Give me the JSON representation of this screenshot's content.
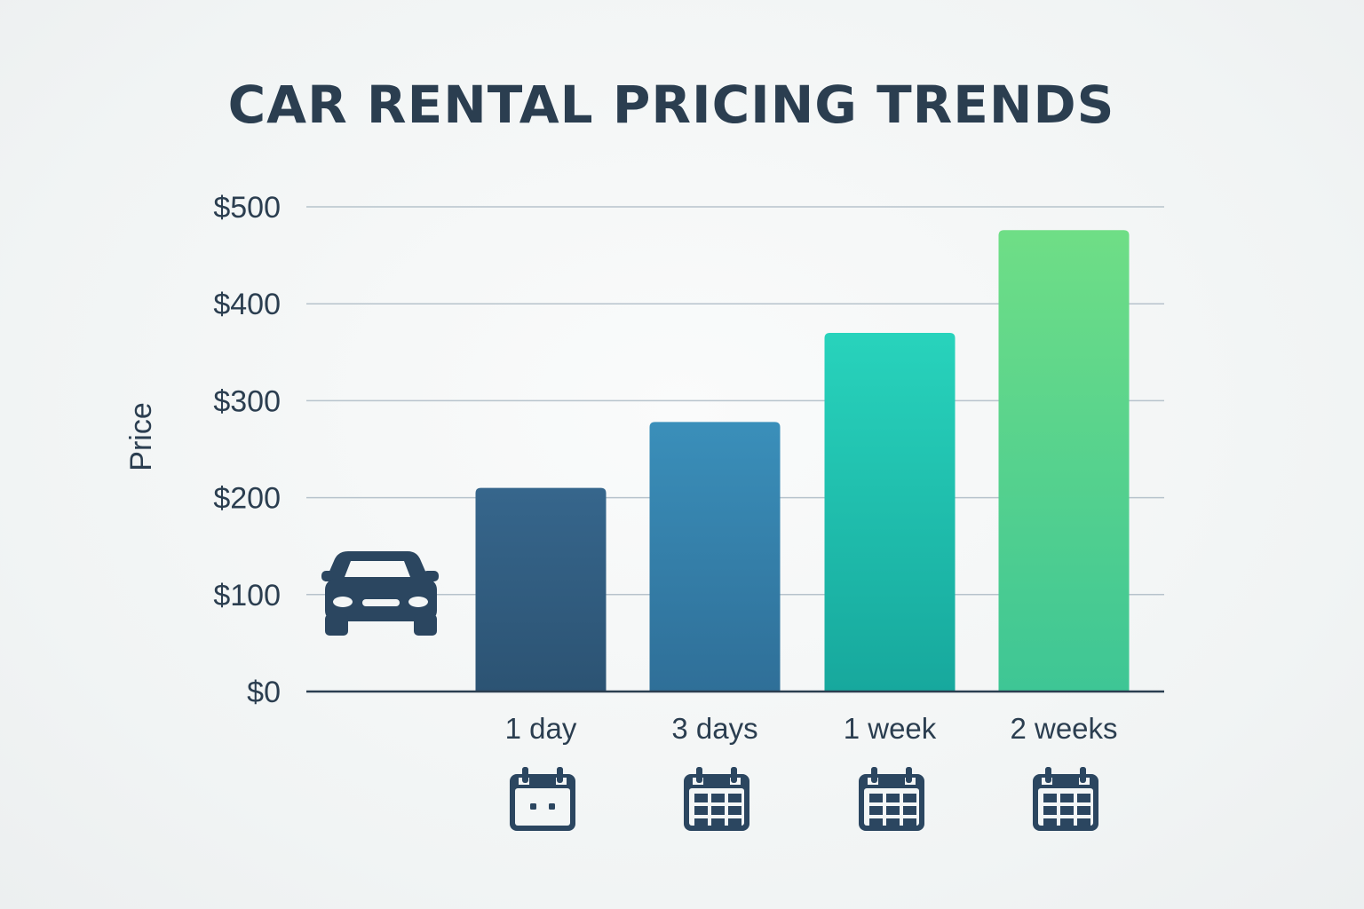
{
  "chart_data": {
    "type": "bar",
    "title": "CAR RENTAL PRICING TRENDS",
    "xlabel": "",
    "ylabel": "Price",
    "categories": [
      "1 day",
      "3 days",
      "1 week",
      "2 weeks"
    ],
    "values": [
      210,
      278,
      370,
      476
    ],
    "ylim": [
      0,
      500
    ],
    "yticks": [
      0,
      100,
      200,
      300,
      400,
      500
    ],
    "ytick_labels": [
      "$0",
      "$100",
      "$200",
      "$300",
      "$400",
      "$500"
    ],
    "grid": true,
    "bar_colors": [
      [
        "#36668c",
        "#2c5373"
      ],
      [
        "#3a8fba",
        "#2f6f98"
      ],
      [
        "#28d3bc",
        "#17a89d"
      ],
      [
        "#6fde86",
        "#3ec695"
      ]
    ],
    "category_icons": [
      "calendar-icon",
      "calendar-grid-icon",
      "calendar-grid-icon",
      "calendar-grid-icon"
    ],
    "decoration_icon": "car-icon"
  },
  "colors": {
    "text": "#2b3e50",
    "grid": "#b7c3cc",
    "axis": "#2b3e50",
    "icon": "#2b4660"
  }
}
